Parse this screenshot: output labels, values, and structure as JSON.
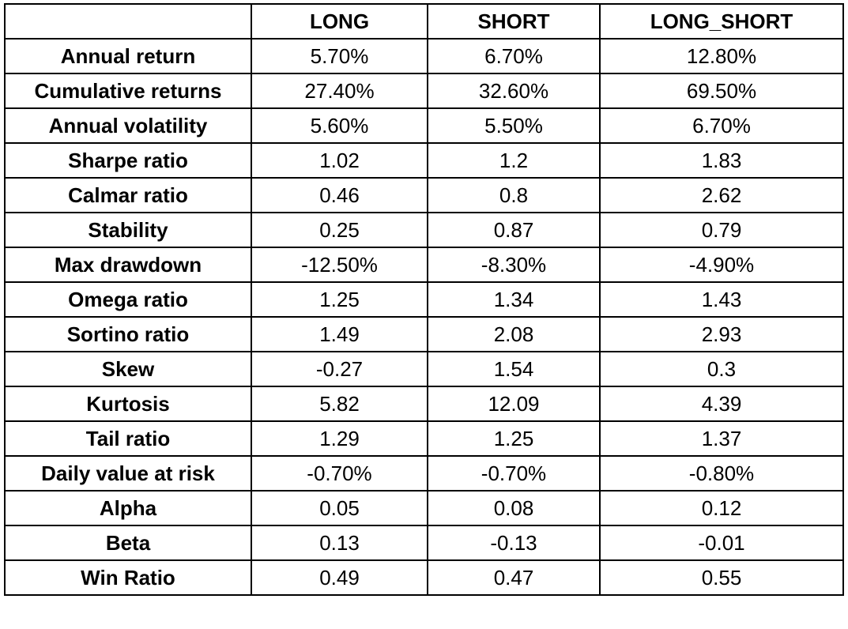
{
  "table": {
    "headers": [
      "",
      "LONG",
      "SHORT",
      "LONG_SHORT"
    ],
    "rows": [
      {
        "label": "Annual return",
        "values": [
          "5.70%",
          "6.70%",
          "12.80%"
        ]
      },
      {
        "label": "Cumulative returns",
        "values": [
          "27.40%",
          "32.60%",
          "69.50%"
        ]
      },
      {
        "label": "Annual volatility",
        "values": [
          "5.60%",
          "5.50%",
          "6.70%"
        ]
      },
      {
        "label": "Sharpe ratio",
        "values": [
          "1.02",
          "1.2",
          "1.83"
        ]
      },
      {
        "label": "Calmar ratio",
        "values": [
          "0.46",
          "0.8",
          "2.62"
        ]
      },
      {
        "label": "Stability",
        "values": [
          "0.25",
          "0.87",
          "0.79"
        ]
      },
      {
        "label": "Max drawdown",
        "values": [
          "-12.50%",
          "-8.30%",
          "-4.90%"
        ]
      },
      {
        "label": "Omega ratio",
        "values": [
          "1.25",
          "1.34",
          "1.43"
        ]
      },
      {
        "label": "Sortino ratio",
        "values": [
          "1.49",
          "2.08",
          "2.93"
        ]
      },
      {
        "label": "Skew",
        "values": [
          "-0.27",
          "1.54",
          "0.3"
        ]
      },
      {
        "label": "Kurtosis",
        "values": [
          "5.82",
          "12.09",
          "4.39"
        ]
      },
      {
        "label": "Tail ratio",
        "values": [
          "1.29",
          "1.25",
          "1.37"
        ]
      },
      {
        "label": "Daily value at risk",
        "values": [
          "-0.70%",
          "-0.70%",
          "-0.80%"
        ]
      },
      {
        "label": "Alpha",
        "values": [
          "0.05",
          "0.08",
          "0.12"
        ]
      },
      {
        "label": "Beta",
        "values": [
          "0.13",
          "-0.13",
          "-0.01"
        ]
      },
      {
        "label": "Win Ratio",
        "values": [
          "0.49",
          "0.47",
          "0.55"
        ]
      }
    ]
  }
}
